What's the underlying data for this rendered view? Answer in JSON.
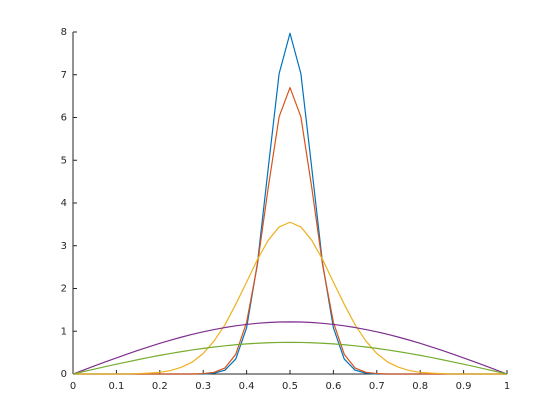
{
  "chart_data": {
    "type": "line",
    "x": [
      0,
      0.025,
      0.05,
      0.075,
      0.1,
      0.125,
      0.15,
      0.175,
      0.2,
      0.225,
      0.25,
      0.275,
      0.3,
      0.325,
      0.35,
      0.375,
      0.4,
      0.425,
      0.45,
      0.475,
      0.5,
      0.525,
      0.55,
      0.575,
      0.6,
      0.625,
      0.65,
      0.675,
      0.7,
      0.725,
      0.75,
      0.775,
      0.8,
      0.825,
      0.85,
      0.875,
      0.9,
      0.925,
      0.95,
      0.975,
      1
    ],
    "series": [
      {
        "color": "#0072BD",
        "values": [
          0,
          0,
          0,
          0,
          0,
          0,
          0,
          0,
          0,
          0,
          0,
          0,
          0,
          0.02,
          0.09,
          0.35,
          1.08,
          2.59,
          4.83,
          7.03,
          7.97,
          7.03,
          4.83,
          2.59,
          1.08,
          0.35,
          0.09,
          0.02,
          0,
          0,
          0,
          0,
          0,
          0,
          0,
          0,
          0,
          0,
          0,
          0,
          0
        ]
      },
      {
        "color": "#D95319",
        "values": [
          0,
          0,
          0,
          0,
          0,
          0,
          0,
          0,
          0,
          0,
          0,
          0,
          0.01,
          0.04,
          0.14,
          0.46,
          1.21,
          2.56,
          4.37,
          6.02,
          6.7,
          6.02,
          4.37,
          2.56,
          1.21,
          0.46,
          0.14,
          0.04,
          0.01,
          0,
          0,
          0,
          0,
          0,
          0,
          0,
          0,
          0,
          0,
          0,
          0
        ]
      },
      {
        "color": "#EDB120",
        "values": [
          0,
          0,
          0,
          0,
          0,
          0,
          0.01,
          0.02,
          0.04,
          0.08,
          0.16,
          0.28,
          0.48,
          0.77,
          1.15,
          1.63,
          2.15,
          2.68,
          3.13,
          3.44,
          3.55,
          3.44,
          3.13,
          2.68,
          2.15,
          1.63,
          1.15,
          0.77,
          0.48,
          0.28,
          0.16,
          0.08,
          0.04,
          0.02,
          0.01,
          0,
          0,
          0,
          0,
          0,
          0
        ]
      },
      {
        "color": "#7E2F8E",
        "values": [
          0,
          0.096,
          0.191,
          0.285,
          0.377,
          0.467,
          0.554,
          0.637,
          0.717,
          0.792,
          0.863,
          0.928,
          0.987,
          1.04,
          1.087,
          1.127,
          1.16,
          1.186,
          1.205,
          1.216,
          1.22,
          1.216,
          1.205,
          1.186,
          1.16,
          1.127,
          1.087,
          1.04,
          0.987,
          0.928,
          0.863,
          0.792,
          0.717,
          0.637,
          0.554,
          0.467,
          0.377,
          0.285,
          0.191,
          0.096,
          0
        ]
      },
      {
        "color": "#77AC30",
        "values": [
          0,
          0.058,
          0.116,
          0.173,
          0.229,
          0.283,
          0.336,
          0.387,
          0.435,
          0.481,
          0.523,
          0.563,
          0.599,
          0.631,
          0.659,
          0.684,
          0.704,
          0.72,
          0.731,
          0.738,
          0.74,
          0.738,
          0.731,
          0.72,
          0.704,
          0.684,
          0.659,
          0.631,
          0.599,
          0.563,
          0.523,
          0.481,
          0.435,
          0.387,
          0.336,
          0.283,
          0.229,
          0.173,
          0.116,
          0.058,
          0
        ]
      }
    ],
    "xlim": [
      0,
      1
    ],
    "xticks": [
      0,
      0.1,
      0.2,
      0.3,
      0.4,
      0.5,
      0.6,
      0.7,
      0.8,
      0.9,
      1
    ],
    "ylim": [
      0,
      8
    ],
    "yticks": [
      0,
      1,
      2,
      3,
      4,
      5,
      6,
      7,
      8
    ]
  }
}
